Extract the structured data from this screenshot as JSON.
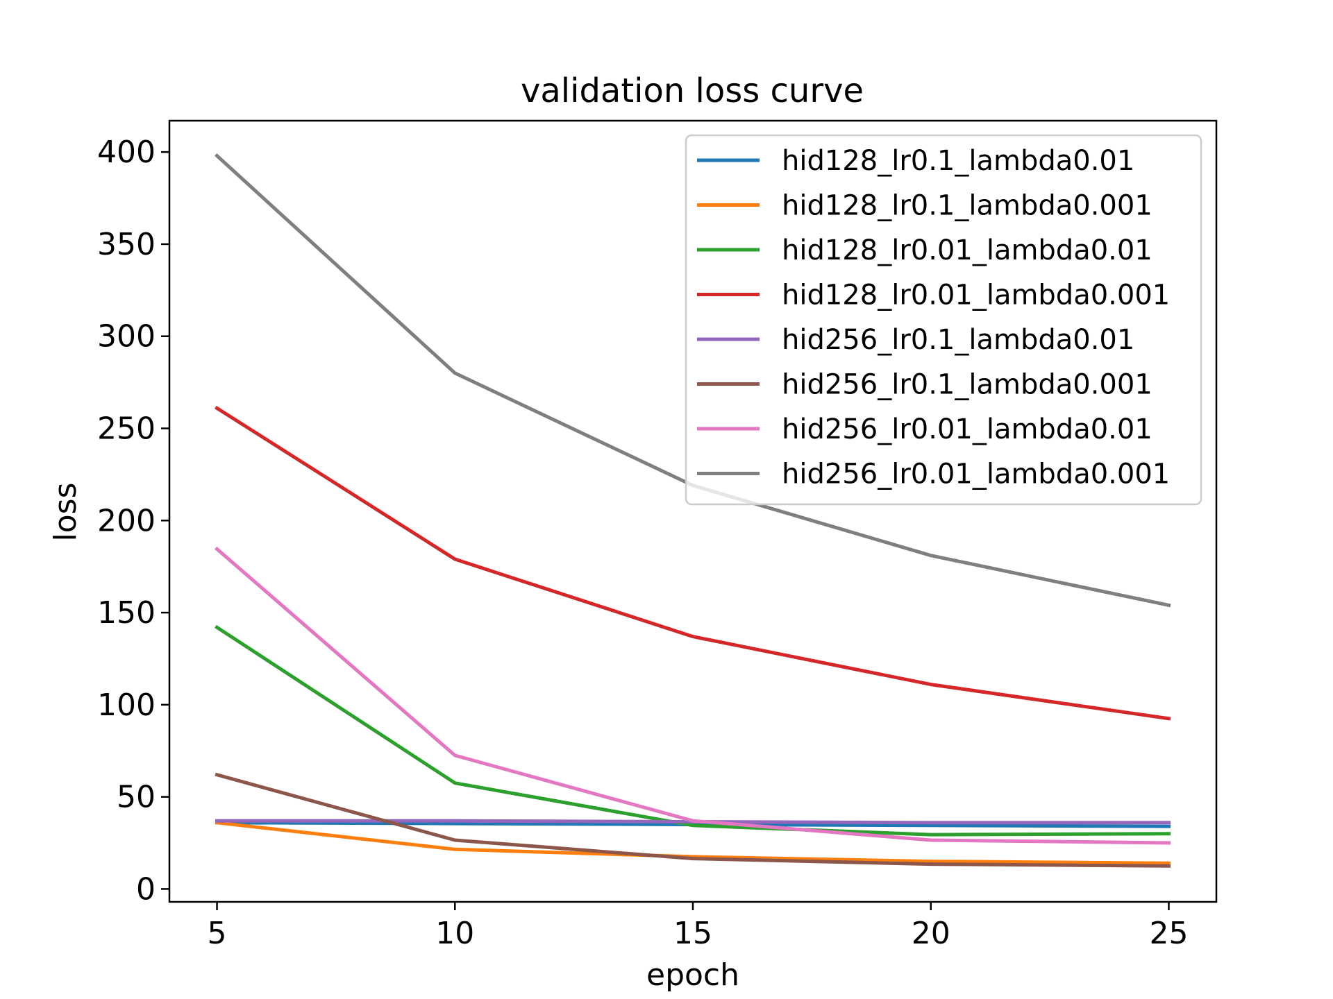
{
  "chart_data": {
    "type": "line",
    "title": "validation loss curve",
    "xlabel": "epoch",
    "ylabel": "loss",
    "x": [
      5,
      10,
      15,
      20,
      25
    ],
    "xlim": [
      4,
      26
    ],
    "ylim": [
      -7,
      417
    ],
    "xticks": [
      5,
      10,
      15,
      20,
      25
    ],
    "yticks": [
      0,
      50,
      100,
      150,
      200,
      250,
      300,
      350,
      400
    ],
    "grid": false,
    "legend_position": "top-right",
    "series": [
      {
        "name": "hid128_lr0.1_lambda0.01",
        "color": "#1f77b4",
        "values": [
          36,
          35.5,
          35,
          34.5,
          34
        ]
      },
      {
        "name": "hid128_lr0.1_lambda0.001",
        "color": "#ff7f0e",
        "values": [
          36,
          21.5,
          17.5,
          15,
          14
        ]
      },
      {
        "name": "hid128_lr0.01_lambda0.01",
        "color": "#2ca02c",
        "values": [
          142,
          57.5,
          34.5,
          29.5,
          30
        ]
      },
      {
        "name": "hid128_lr0.01_lambda0.001",
        "color": "#d62728",
        "values": [
          261,
          179,
          137,
          111,
          92.5
        ]
      },
      {
        "name": "hid256_lr0.1_lambda0.01",
        "color": "#9467bd",
        "values": [
          37,
          37,
          36.5,
          36,
          36
        ]
      },
      {
        "name": "hid256_lr0.1_lambda0.001",
        "color": "#8c564b",
        "values": [
          62,
          26.5,
          16.5,
          13.5,
          12.5
        ]
      },
      {
        "name": "hid256_lr0.01_lambda0.01",
        "color": "#e377c2",
        "values": [
          184.5,
          72.5,
          37,
          26.5,
          25
        ]
      },
      {
        "name": "hid256_lr0.01_lambda0.001",
        "color": "#7f7f7f",
        "values": [
          398,
          280,
          219,
          181,
          154
        ]
      }
    ]
  }
}
